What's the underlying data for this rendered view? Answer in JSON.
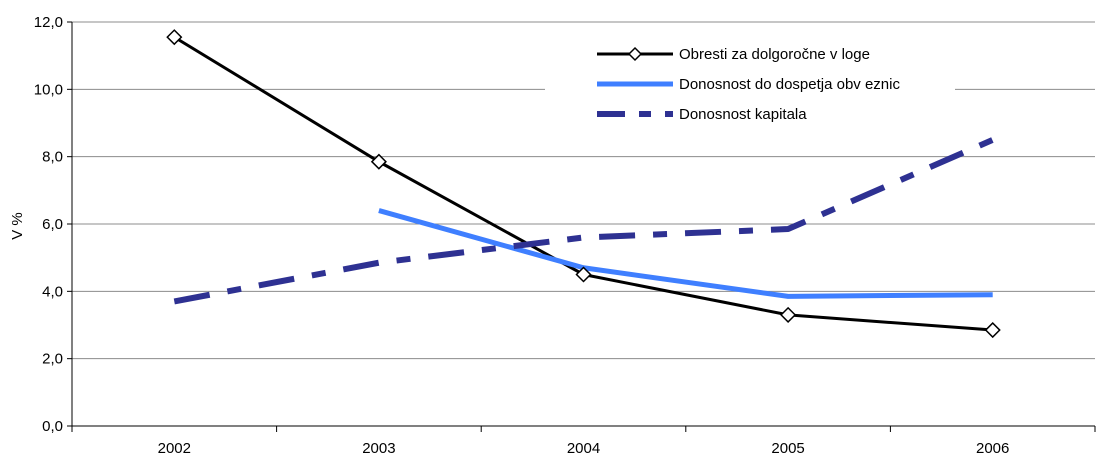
{
  "chart_data": {
    "type": "line",
    "title": "",
    "xlabel": "",
    "ylabel": "V %",
    "categories": [
      "2002",
      "2003",
      "2004",
      "2005",
      "2006"
    ],
    "ylim": [
      0,
      12
    ],
    "ytick_values": [
      0,
      2,
      4,
      6,
      8,
      10,
      12
    ],
    "ytick_labels": [
      "0,0",
      "2,0",
      "4,0",
      "6,0",
      "8,0",
      "10,0",
      "12,0"
    ],
    "grid": "horizontal",
    "legend_position": "top-right",
    "series": [
      {
        "name": "Obresti za dolgoročne v loge",
        "values": [
          11.55,
          7.85,
          4.5,
          3.3,
          2.85
        ],
        "color": "#000000",
        "style": "solid",
        "marker": "diamond"
      },
      {
        "name": "Donosnost do dospetja obv eznic",
        "values": [
          null,
          6.4,
          4.7,
          3.85,
          3.9
        ],
        "color": "#3F7FFF",
        "style": "solid",
        "marker": "none"
      },
      {
        "name": "Donosnost  kapitala",
        "values": [
          3.7,
          4.85,
          5.6,
          5.85,
          8.5
        ],
        "color": "#2E3192",
        "style": "dash-dot",
        "marker": "none"
      }
    ]
  }
}
